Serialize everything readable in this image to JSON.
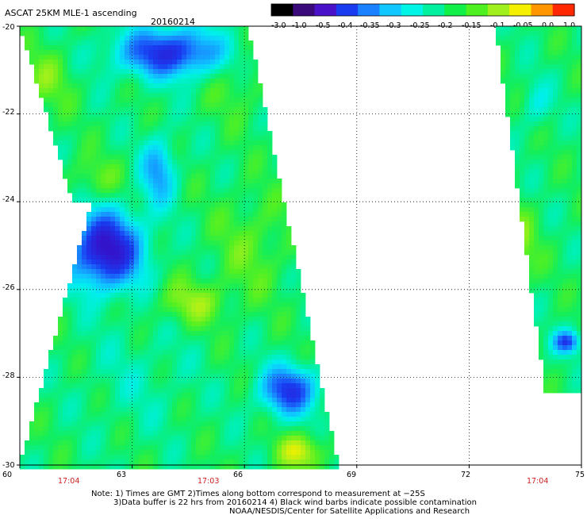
{
  "title": "ASCAT 25KM MLE-1 ascending",
  "date": "20160214",
  "colorbar": {
    "labels": [
      "-3.0",
      "-1.0",
      "-0.5",
      "-0.4",
      "-0.35",
      "-0.3",
      "-0.25",
      "-0.2",
      "-0.15",
      "-0.1",
      "-0.05",
      "0.0",
      "1.0"
    ],
    "colors": [
      "#000000",
      "#3a0a7a",
      "#4a12c8",
      "#1a3cf0",
      "#1a82ff",
      "#10c8ff",
      "#00f5e6",
      "#00f0a0",
      "#10f046",
      "#4ef020",
      "#a0f01e",
      "#f5f000",
      "#ff9600",
      "#ff2800"
    ]
  },
  "map": {
    "lon_range": [
      60,
      75
    ],
    "lat_range": [
      -30,
      -20
    ],
    "lon_ticks": [
      "60",
      "63",
      "66",
      "69",
      "72",
      "75"
    ],
    "lat_ticks": [
      "-20",
      "-22",
      "-24",
      "-26",
      "-28",
      "-30"
    ],
    "grid": true,
    "pass_times": [
      "17:04",
      "17:03",
      "17:04"
    ],
    "field_swaths": [
      {
        "region": "left swath",
        "lon_span": [
          60.3,
          68.3
        ]
      },
      {
        "region": "right swath",
        "lon_span": [
          72.7,
          75
        ]
      }
    ]
  },
  "notes": [
    "Note: 1) Times are GMT 2)Times along bottom correspond to measurement at −25S",
    "3)Data buffer is 22 hrs from 20160214 4) Black wind barbs indicate possible contamination",
    "NOAA/NESDIS/Center for Satellite Applications and Research"
  ]
}
